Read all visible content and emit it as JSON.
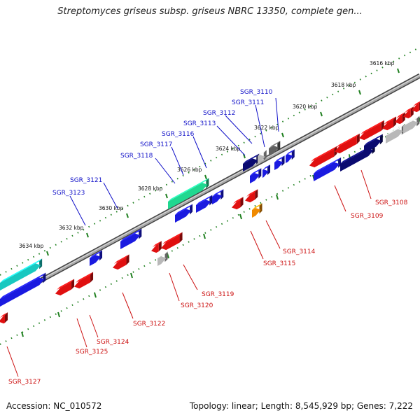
{
  "title": "Streptomyces griseus subsp. griseus NBRC 13350, complete gen...",
  "footer": {
    "accession": "Accession: NC_010572",
    "summary": "Topology: linear; Length: 8,545,929 bp; Genes: 7,222"
  },
  "scale": {
    "unit": "kbp",
    "ticks": [
      "3616 kbp",
      "3618 kbp",
      "3620 kbp",
      "3622 kbp",
      "3624 kbp",
      "3626 kbp",
      "3628 kbp",
      "3630 kbp",
      "3632 kbp",
      "3634 kbp"
    ]
  },
  "genes_top": [
    "SGR_3110",
    "SGR_3111",
    "SGR_3112",
    "SGR_3113",
    "SGR_3116",
    "SGR_3117",
    "SGR_3118",
    "SGR_3121",
    "SGR_3123"
  ],
  "genes_bottom": [
    "SGR_3108",
    "SGR_3109",
    "SGR_3114",
    "SGR_3115",
    "SGR_3119",
    "SGR_3120",
    "SGR_3122",
    "SGR_3124",
    "SGR_3125",
    "SGR_3127"
  ],
  "colors": {
    "forward_gene": "#1a1ae0",
    "reverse_gene": "#e01010",
    "selected_gene": "#20d890",
    "dark_gene": "#0a0a70",
    "grey_gene": "#b8b8b8",
    "orange_gene": "#f08a00",
    "teal_gene": "#18c8c0",
    "axis": "#8c8c8c",
    "dots": "#208020"
  }
}
